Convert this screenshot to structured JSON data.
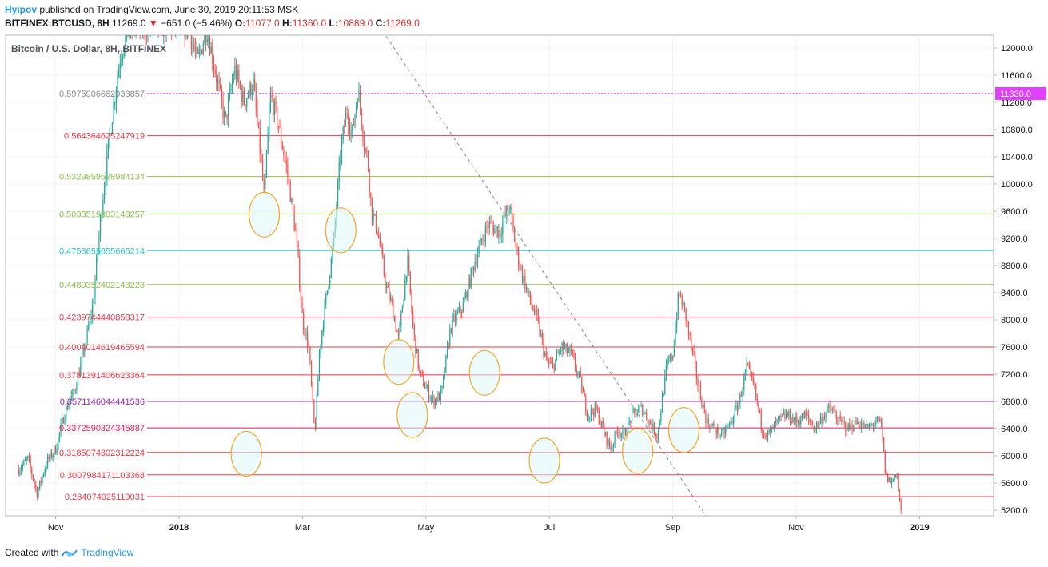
{
  "header": {
    "author": "Hyipov",
    "published_text": "published on TradingView.com, June 30, 2019 20:11:53 MSK",
    "symbol": "BITFINEX:BTCUSD, 8H",
    "price": "11269.0",
    "change_arrow": "▼",
    "change": "−651.0 (−5.46%)",
    "o_label": "O:",
    "o_value": "11077.0",
    "h_label": "H:",
    "h_value": "11360.0",
    "l_label": "L:",
    "l_value": "10889.0",
    "c_label": "C:",
    "c_value": "11269.0"
  },
  "footer": {
    "created_with": "Created with",
    "brand": "TradingView"
  },
  "colors": {
    "up": "#26a69a",
    "down": "#ef5350",
    "fib_red": "#f23645",
    "fib_green": "#8bc34a",
    "fib_teal": "#26c6da",
    "fib_purple": "#9c27b0",
    "fib_magenta": "#e91e63",
    "price_tag": "#e040fb",
    "circle_stroke": "#f5a623",
    "circle_fill": "#e0f7fa"
  },
  "chart_data": {
    "type": "candlestick",
    "title": "Bitcoin / U.S. Dollar, 8H, BITFINEX",
    "y_axis": {
      "range": [
        5100,
        12300
      ],
      "ticks": [
        "12000.0",
        "11600.0",
        "11200.0",
        "10800.0",
        "10400.0",
        "10000.0",
        "9600.0",
        "9200.0",
        "8800.0",
        "8400.0",
        "8000.0",
        "7600.0",
        "7200.0",
        "6800.0",
        "6400.0",
        "6000.0",
        "5600.0",
        "5200.0"
      ],
      "current_price_label": "11330.0",
      "current_price": 11330
    },
    "x_axis": {
      "ticks": [
        {
          "label": "Nov",
          "month": -2,
          "bold": false
        },
        {
          "label": "2018",
          "month": 0,
          "bold": true
        },
        {
          "label": "Mar",
          "month": 2,
          "bold": false
        },
        {
          "label": "May",
          "month": 4,
          "bold": false
        },
        {
          "label": "Jul",
          "month": 6,
          "bold": false
        },
        {
          "label": "Sep",
          "month": 8,
          "bold": false
        },
        {
          "label": "Nov",
          "month": 10,
          "bold": false
        },
        {
          "label": "2019",
          "month": 12,
          "bold": true
        }
      ]
    },
    "fib_levels": [
      {
        "label": "0.5975906662933857",
        "price": 11330,
        "color": "price_tag",
        "dotted": true,
        "label_color": "#8a8a8a"
      },
      {
        "label": "0.564364625247919",
        "price": 10710,
        "color": "fib_red"
      },
      {
        "label": "0.5329859528984134",
        "price": 10110,
        "color": "fib_green"
      },
      {
        "label": "0.5033519303148257",
        "price": 9560,
        "color": "fib_green"
      },
      {
        "label": "0.4753655655665214",
        "price": 9020,
        "color": "fib_teal"
      },
      {
        "label": "0.4489352402143228",
        "price": 8520,
        "color": "fib_green"
      },
      {
        "label": "0.4239744440858317",
        "price": 8040,
        "color": "fib_red"
      },
      {
        "label": "0.4004014619465594",
        "price": 7600,
        "color": "fib_red"
      },
      {
        "label": "0.3781391406623364",
        "price": 7190,
        "color": "fib_red"
      },
      {
        "label": "0.3571146044441536",
        "price": 6800,
        "color": "fib_purple"
      },
      {
        "label": "0.3372590324345887",
        "price": 6410,
        "color": "fib_magenta"
      },
      {
        "label": "0.3185074302312224",
        "price": 6050,
        "color": "fib_red"
      },
      {
        "label": "0.3007984171103368",
        "price": 5720,
        "color": "fib_red"
      },
      {
        "label": "0.284074025119031",
        "price": 5400,
        "color": "fib_red"
      }
    ],
    "trend_line": {
      "from": {
        "month": 3.3,
        "price": 12250
      },
      "to": {
        "month": 8.55,
        "price": 5100
      },
      "dashed": true
    },
    "circles": [
      {
        "month": 1.38,
        "price": 9550
      },
      {
        "month": 2.62,
        "price": 9320
      },
      {
        "month": 3.56,
        "price": 7380
      },
      {
        "month": 3.78,
        "price": 6600
      },
      {
        "month": 1.09,
        "price": 6030
      },
      {
        "month": 4.95,
        "price": 7220
      },
      {
        "month": 5.92,
        "price": 5930
      },
      {
        "month": 7.43,
        "price": 6070
      },
      {
        "month": 8.18,
        "price": 6380
      }
    ],
    "price_path": [
      [
        -2.6,
        5800
      ],
      [
        -2.45,
        5950
      ],
      [
        -2.3,
        5450
      ],
      [
        -2.15,
        5900
      ],
      [
        -2.0,
        6100
      ],
      [
        -1.85,
        6650
      ],
      [
        -1.7,
        6950
      ],
      [
        -1.55,
        7500
      ],
      [
        -1.4,
        8200
      ],
      [
        -1.25,
        9700
      ],
      [
        -1.1,
        10900
      ],
      [
        -0.95,
        11900
      ],
      [
        -0.8,
        12300
      ],
      [
        -0.6,
        12300
      ],
      [
        -0.3,
        12300
      ],
      [
        0.0,
        12300
      ],
      [
        0.15,
        12300
      ],
      [
        0.3,
        11800
      ],
      [
        0.45,
        12300
      ],
      [
        0.6,
        11600
      ],
      [
        0.75,
        10900
      ],
      [
        0.9,
        11700
      ],
      [
        1.05,
        11200
      ],
      [
        1.2,
        11500
      ],
      [
        1.3,
        10600
      ],
      [
        1.38,
        9800
      ],
      [
        1.48,
        11300
      ],
      [
        1.6,
        10900
      ],
      [
        1.75,
        10200
      ],
      [
        1.9,
        9200
      ],
      [
        2.0,
        8000
      ],
      [
        2.1,
        7600
      ],
      [
        2.2,
        6300
      ],
      [
        2.28,
        7600
      ],
      [
        2.38,
        8300
      ],
      [
        2.5,
        9100
      ],
      [
        2.62,
        10500
      ],
      [
        2.72,
        11100
      ],
      [
        2.8,
        10700
      ],
      [
        2.9,
        11400
      ],
      [
        3.0,
        10600
      ],
      [
        3.06,
        10300
      ],
      [
        3.12,
        9600
      ],
      [
        3.22,
        9300
      ],
      [
        3.35,
        8500
      ],
      [
        3.45,
        8200
      ],
      [
        3.56,
        7700
      ],
      [
        3.7,
        8900
      ],
      [
        3.8,
        7800
      ],
      [
        3.9,
        7200
      ],
      [
        4.0,
        7000
      ],
      [
        4.12,
        6800
      ],
      [
        4.25,
        6900
      ],
      [
        4.4,
        7900
      ],
      [
        4.6,
        8200
      ],
      [
        4.8,
        8900
      ],
      [
        5.0,
        9400
      ],
      [
        5.2,
        9300
      ],
      [
        5.35,
        9700
      ],
      [
        5.45,
        9100
      ],
      [
        5.55,
        8700
      ],
      [
        5.68,
        8300
      ],
      [
        5.8,
        8000
      ],
      [
        5.95,
        7400
      ],
      [
        6.05,
        7300
      ],
      [
        6.2,
        7600
      ],
      [
        6.35,
        7500
      ],
      [
        6.5,
        7100
      ],
      [
        6.62,
        6600
      ],
      [
        6.75,
        6700
      ],
      [
        6.9,
        6300
      ],
      [
        7.0,
        6100
      ],
      [
        7.1,
        6400
      ],
      [
        7.2,
        6300
      ],
      [
        7.35,
        6600
      ],
      [
        7.5,
        6700
      ],
      [
        7.62,
        6500
      ],
      [
        7.75,
        6300
      ],
      [
        7.9,
        7300
      ],
      [
        8.0,
        7500
      ],
      [
        8.1,
        8400
      ],
      [
        8.2,
        8100
      ],
      [
        8.3,
        7600
      ],
      [
        8.42,
        7000
      ],
      [
        8.55,
        6500
      ],
      [
        8.68,
        6400
      ],
      [
        8.8,
        6300
      ],
      [
        8.95,
        6500
      ],
      [
        9.08,
        6800
      ],
      [
        9.2,
        7300
      ],
      [
        9.32,
        7000
      ],
      [
        9.45,
        6400
      ],
      [
        9.55,
        6300
      ],
      [
        9.7,
        6500
      ],
      [
        9.85,
        6600
      ],
      [
        10.0,
        6500
      ],
      [
        10.15,
        6600
      ],
      [
        10.3,
        6400
      ],
      [
        10.45,
        6600
      ],
      [
        10.55,
        6700
      ],
      [
        10.7,
        6500
      ],
      [
        10.85,
        6400
      ],
      [
        11.0,
        6500
      ],
      [
        11.15,
        6400
      ],
      [
        11.3,
        6500
      ],
      [
        11.38,
        6450
      ],
      [
        11.45,
        5700
      ],
      [
        11.55,
        5600
      ],
      [
        11.62,
        5800
      ],
      [
        11.7,
        5150
      ]
    ]
  }
}
